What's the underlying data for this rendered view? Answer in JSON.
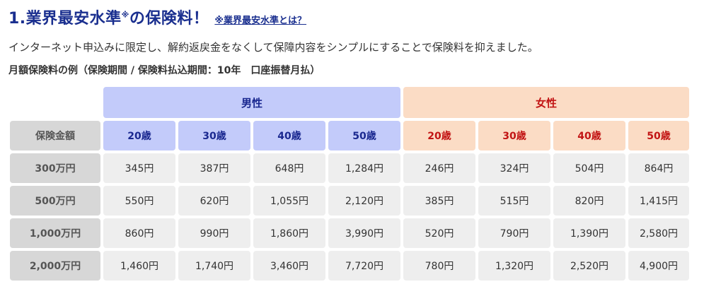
{
  "heading": {
    "title": "1.業界最安水準",
    "title_mark": "※",
    "title_suffix": "の保険料！",
    "note_link": "※業界最安水準とは？"
  },
  "description": "インターネット申込みに限定し、解約返戻金をなくして保障内容をシンプルにすることで保険料を抑えました。",
  "table_caption": "月額保険料の例（保険期間 / 保険料払込期間：10年　口座振替月払）",
  "table": {
    "gender_headers": {
      "male": "男性",
      "female": "女性"
    },
    "label_header": "保険金額",
    "male_ages": [
      "20歳",
      "30歳",
      "40歳",
      "50歳"
    ],
    "female_ages": [
      "20歳",
      "30歳",
      "40歳",
      "50歳"
    ],
    "rows": [
      {
        "amount": "300万円",
        "male": [
          "345円",
          "387円",
          "648円",
          "1,284円"
        ],
        "female": [
          "246円",
          "324円",
          "504円",
          "864円"
        ]
      },
      {
        "amount": "500万円",
        "male": [
          "550円",
          "620円",
          "1,055円",
          "2,120円"
        ],
        "female": [
          "385円",
          "515円",
          "820円",
          "1,415円"
        ]
      },
      {
        "amount": "1,000万円",
        "male": [
          "860円",
          "990円",
          "1,860円",
          "3,990円"
        ],
        "female": [
          "520円",
          "790円",
          "1,390円",
          "2,580円"
        ]
      },
      {
        "amount": "2,000万円",
        "male": [
          "1,460円",
          "1,740円",
          "3,460円",
          "7,720円"
        ],
        "female": [
          "780円",
          "1,320円",
          "2,520円",
          "4,900円"
        ]
      }
    ]
  },
  "colors": {
    "title": "#1a2f8f",
    "male_header_bg": "#c3cbfa",
    "male_header_text": "#1a2890",
    "female_header_bg": "#fbdcc5",
    "female_header_text": "#c21414",
    "label_bg": "#d7d7d7",
    "cell_bg": "#eeeeee"
  }
}
